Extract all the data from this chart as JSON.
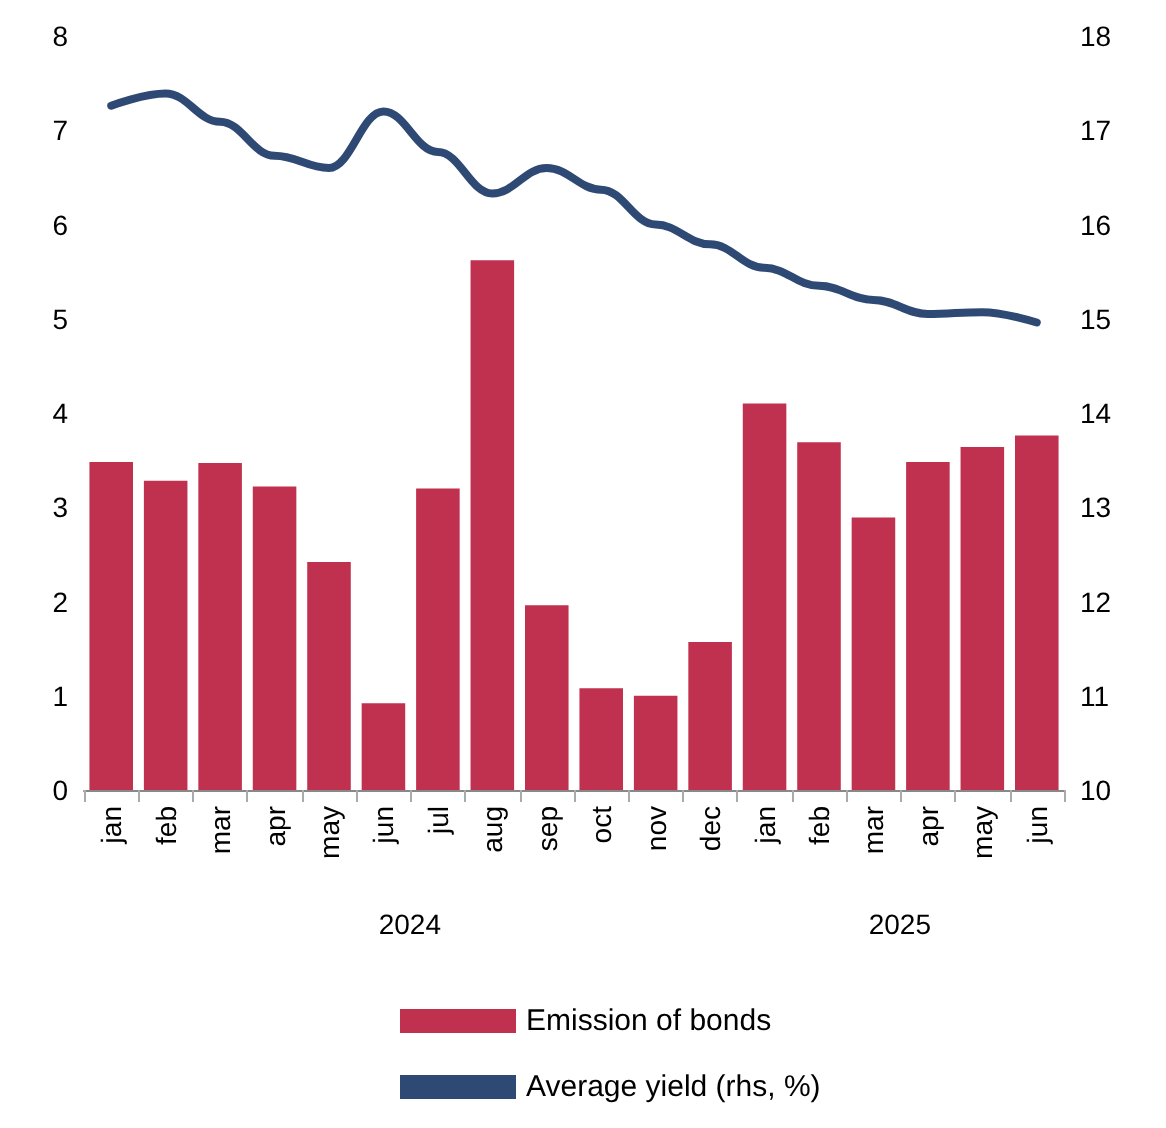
{
  "chart_data": {
    "type": "bar",
    "categories": [
      "jan",
      "feb",
      "mar",
      "apr",
      "may",
      "jun",
      "jul",
      "aug",
      "sep",
      "oct",
      "nov",
      "dec",
      "jan",
      "feb",
      "mar",
      "apr",
      "may",
      "jun"
    ],
    "series": [
      {
        "name": "Emission of bonds",
        "color": "#c0304f",
        "values": [
          3.48,
          3.28,
          3.47,
          3.22,
          2.42,
          0.92,
          3.2,
          5.62,
          1.96,
          1.08,
          1.0,
          1.57,
          4.1,
          3.69,
          2.89,
          3.48,
          3.64,
          3.76
        ]
      },
      {
        "name": "Average yield (rhs, %)",
        "type": "line",
        "axis": "y2",
        "color": "#2e4a74",
        "values": [
          17.26,
          17.39,
          17.09,
          16.73,
          16.6,
          17.2,
          16.77,
          16.33,
          16.6,
          16.37,
          16.0,
          15.79,
          15.54,
          15.35,
          15.2,
          15.05,
          15.07,
          14.96
        ]
      }
    ],
    "ylim": [
      0,
      8
    ],
    "yticks": [
      0,
      1,
      2,
      3,
      4,
      5,
      6,
      7,
      8
    ],
    "y2lim": [
      10,
      18
    ],
    "y2ticks": [
      10,
      11,
      12,
      13,
      14,
      15,
      16,
      17,
      18
    ],
    "annotations": [
      "2024",
      "2025"
    ],
    "grid": false,
    "legend": "bottom",
    "marker": "none"
  }
}
